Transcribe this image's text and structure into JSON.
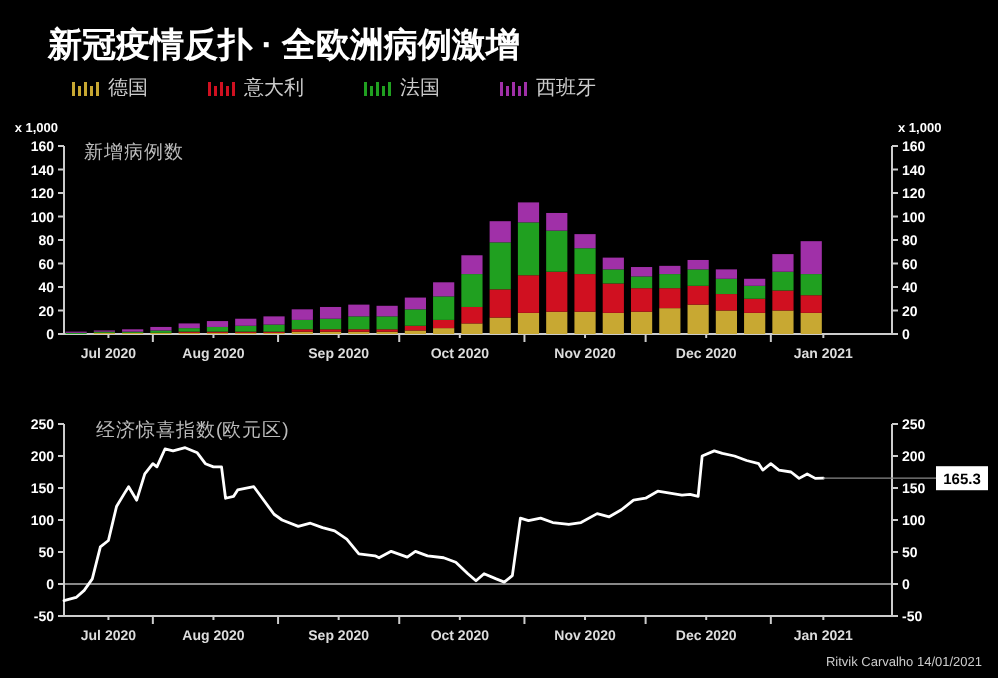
{
  "chart_data": [
    {
      "type": "bar",
      "stacked": true,
      "title": "新冠疫情反扑 · 全欧洲病例激增",
      "subtitle": "新增病例数",
      "ylabel": "x 1,000",
      "y2label": "x 1,000",
      "legend": "top",
      "x": [
        "2020-07-13",
        "2020-07-20",
        "2020-07-27",
        "2020-08-03",
        "2020-08-10",
        "2020-08-17",
        "2020-08-24",
        "2020-08-31",
        "2020-09-07",
        "2020-09-14",
        "2020-09-21",
        "2020-09-28",
        "2020-10-05",
        "2020-10-12",
        "2020-10-19",
        "2020-10-26",
        "2020-11-02",
        "2020-11-09",
        "2020-11-16",
        "2020-11-23",
        "2020-11-30",
        "2020-12-07",
        "2020-12-14",
        "2020-12-21",
        "2020-12-28",
        "2021-01-04",
        "2021-01-11"
      ],
      "series": [
        {
          "name": "德国",
          "color": "#c8a832",
          "values": [
            0,
            1,
            1,
            1,
            1,
            1,
            1,
            1,
            2,
            2,
            2,
            2,
            3,
            5,
            9,
            14,
            18,
            19,
            19,
            18,
            19,
            22,
            25,
            20,
            18,
            20,
            18
          ]
        },
        {
          "name": "意大利",
          "color": "#d01020",
          "values": [
            0,
            0,
            0,
            0,
            1,
            1,
            1,
            1,
            2,
            2,
            2,
            2,
            4,
            7,
            14,
            24,
            32,
            34,
            32,
            25,
            20,
            17,
            16,
            14,
            12,
            17,
            15
          ]
        },
        {
          "name": "法国",
          "color": "#20a020",
          "values": [
            1,
            1,
            1,
            2,
            3,
            4,
            5,
            6,
            8,
            9,
            11,
            11,
            14,
            20,
            28,
            40,
            45,
            35,
            22,
            12,
            10,
            12,
            14,
            13,
            11,
            16,
            18
          ]
        },
        {
          "name": "西班牙",
          "color": "#a030a8",
          "values": [
            1,
            1,
            2,
            3,
            4,
            5,
            6,
            7,
            9,
            10,
            10,
            9,
            10,
            12,
            16,
            18,
            17,
            15,
            12,
            10,
            8,
            7,
            8,
            8,
            6,
            15,
            28
          ]
        }
      ],
      "xlim": [
        "2020-07-10",
        "2021-01-31"
      ],
      "xticks": [
        {
          "value": "2020-07-21",
          "label": "Jul 2020"
        },
        {
          "value": "2020-08-01",
          "label": null
        },
        {
          "value": "2020-08-16",
          "label": "Aug 2020"
        },
        {
          "value": "2020-09-01",
          "label": null
        },
        {
          "value": "2020-09-16",
          "label": "Sep 2020"
        },
        {
          "value": "2020-10-01",
          "label": null
        },
        {
          "value": "2020-10-16",
          "label": "Oct 2020"
        },
        {
          "value": "2020-11-01",
          "label": null
        },
        {
          "value": "2020-11-16",
          "label": "Nov 2020"
        },
        {
          "value": "2020-12-01",
          "label": null
        },
        {
          "value": "2020-12-16",
          "label": "Dec 2020"
        },
        {
          "value": "2021-01-01",
          "label": null
        },
        {
          "value": "2021-01-14",
          "label": "Jan 2021"
        }
      ],
      "ylim": [
        0,
        160
      ],
      "yticks": [
        0,
        20,
        40,
        60,
        80,
        100,
        120,
        140,
        160
      ],
      "y2lim": [
        0,
        160
      ],
      "y2ticks": [
        0,
        20,
        40,
        60,
        80,
        100,
        120,
        140,
        160
      ]
    },
    {
      "type": "line",
      "title": "经济惊喜指数(欧元区)",
      "x": [
        "2020-07-10",
        "2020-07-13",
        "2020-07-15",
        "2020-07-17",
        "2020-07-19",
        "2020-07-21",
        "2020-07-23",
        "2020-07-25",
        "2020-07-26",
        "2020-07-28",
        "2020-07-30",
        "2020-08-01",
        "2020-08-02",
        "2020-08-04",
        "2020-08-06",
        "2020-08-09",
        "2020-08-12",
        "2020-08-14",
        "2020-08-16",
        "2020-08-18",
        "2020-08-19",
        "2020-08-21",
        "2020-08-22",
        "2020-08-26",
        "2020-08-31",
        "2020-09-02",
        "2020-09-06",
        "2020-09-09",
        "2020-09-12",
        "2020-09-15",
        "2020-09-18",
        "2020-09-21",
        "2020-09-25",
        "2020-09-26",
        "2020-09-29",
        "2020-10-03",
        "2020-10-05",
        "2020-10-08",
        "2020-10-12",
        "2020-10-15",
        "2020-10-18",
        "2020-10-20",
        "2020-10-22",
        "2020-10-25",
        "2020-10-27",
        "2020-10-29",
        "2020-10-31",
        "2020-11-02",
        "2020-11-05",
        "2020-11-08",
        "2020-11-12",
        "2020-11-15",
        "2020-11-19",
        "2020-11-22",
        "2020-11-25",
        "2020-11-28",
        "2020-12-01",
        "2020-12-04",
        "2020-12-07",
        "2020-12-10",
        "2020-12-12",
        "2020-12-14",
        "2020-12-15",
        "2020-12-18",
        "2020-12-20",
        "2020-12-23",
        "2020-12-26",
        "2020-12-29",
        "2020-12-30",
        "2021-01-01",
        "2021-01-03",
        "2021-01-06",
        "2021-01-08",
        "2021-01-10",
        "2021-01-12",
        "2021-01-14"
      ],
      "series": [
        {
          "color": "#ffffff",
          "values": [
            -26,
            -21,
            -10,
            8,
            58,
            68,
            121,
            142,
            152,
            131,
            172,
            188,
            183,
            211,
            208,
            213,
            205,
            188,
            183,
            183,
            134,
            137,
            147,
            152,
            109,
            100,
            90,
            95,
            88,
            83,
            70,
            47,
            44,
            41,
            51,
            42,
            51,
            44,
            41,
            34,
            16,
            5,
            16,
            8,
            3,
            13,
            103,
            99,
            103,
            96,
            93,
            96,
            110,
            105,
            116,
            131,
            134,
            145,
            142,
            139,
            140,
            137,
            200,
            208,
            204,
            200,
            193,
            188,
            178,
            188,
            178,
            175,
            165,
            172,
            165,
            165.3
          ]
        }
      ],
      "xlim": [
        "2020-07-10",
        "2021-01-31"
      ],
      "xticks": [
        {
          "value": "2020-07-21",
          "label": "Jul 2020"
        },
        {
          "value": "2020-08-01",
          "label": null
        },
        {
          "value": "2020-08-16",
          "label": "Aug 2020"
        },
        {
          "value": "2020-09-01",
          "label": null
        },
        {
          "value": "2020-09-16",
          "label": "Sep 2020"
        },
        {
          "value": "2020-10-01",
          "label": null
        },
        {
          "value": "2020-10-16",
          "label": "Oct 2020"
        },
        {
          "value": "2020-11-01",
          "label": null
        },
        {
          "value": "2020-11-16",
          "label": "Nov 2020"
        },
        {
          "value": "2020-12-01",
          "label": null
        },
        {
          "value": "2020-12-16",
          "label": "Dec 2020"
        },
        {
          "value": "2021-01-01",
          "label": null
        },
        {
          "value": "2021-01-14",
          "label": "Jan 2021"
        }
      ],
      "ylim": [
        -50,
        250
      ],
      "yticks": [
        -50,
        0,
        50,
        100,
        150,
        200,
        250
      ],
      "y2lim": [
        -50,
        250
      ],
      "y2ticks": [
        -50,
        0,
        50,
        100,
        150,
        200,
        250
      ],
      "ref_lines": [
        {
          "axis": "y",
          "value": 0,
          "color": "#888888"
        }
      ],
      "annotations": [
        {
          "text": "165.3",
          "x": "2021-01-14",
          "y": 165.3
        },
        "Ritvik Carvalho 14/01/2021"
      ]
    }
  ]
}
